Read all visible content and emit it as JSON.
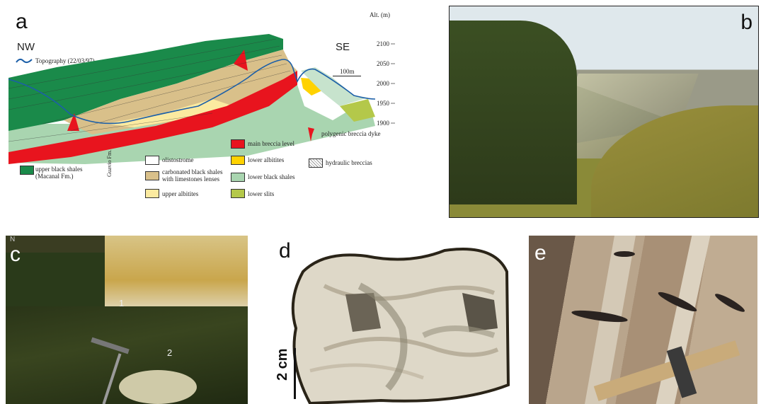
{
  "panels": {
    "a": {
      "letter": "a",
      "nw": "NW",
      "se": "SE",
      "topography": "Topography (22/03/97)",
      "alt_label": "Alt. (m)",
      "altitudes": [
        "2100",
        "2050",
        "2000",
        "1950",
        "1900"
      ],
      "scale": "100m",
      "guavio": "Guavio Fm.",
      "legend": {
        "upper_black_shales": "upper black shales",
        "macanal": "(Macanal Fm.)",
        "olistostrome": "olistostrome",
        "carbonated_1": "carbonated black shales",
        "carbonated_2": "with limestones lenses",
        "upper_albitites": "upper albitites",
        "main_breccia": "main breccia level",
        "lower_albitites": "lower albitites",
        "lower_black_shales": "lower black shales",
        "lower_slits": "lower slits",
        "polygenic": "polygenic breccia dyke",
        "hydraulic": "hydraulic breccias"
      },
      "colors": {
        "green": "#1a8a4a",
        "red": "#e8141e",
        "tan": "#d9c08a",
        "yellow": "#ffd200",
        "pale_green": "#a9d5b0",
        "lime": "#b4c84a",
        "pale_yellow": "#fbeaa0"
      }
    },
    "b": {
      "letter": "b"
    },
    "c": {
      "letter": "c",
      "mark1": "1",
      "mark2": "2",
      "corner": "N"
    },
    "d": {
      "letter": "d",
      "scale": "2 cm"
    },
    "e": {
      "letter": "e"
    }
  }
}
